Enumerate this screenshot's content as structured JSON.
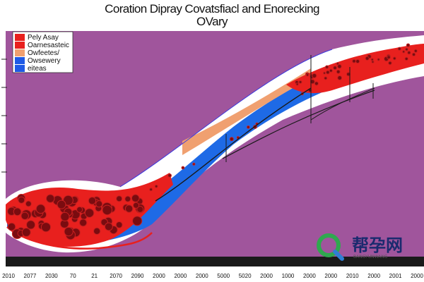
{
  "chart_data": {
    "type": "area",
    "title_line1": "Coration Dipray Covatsfiacl and Enorecking",
    "title_line2": "OVary",
    "x_tick_labels": [
      "2010",
      "2077",
      "2030",
      "70",
      "21",
      "2070",
      "2090",
      "2000",
      "2000",
      "2000",
      "5000",
      "5020",
      "2000",
      "1000",
      "2000",
      "2000",
      "2010",
      "2000",
      "2001",
      "2000"
    ],
    "legend": [
      {
        "label": "Pely Asay",
        "color": "#e8201e"
      },
      {
        "label": "Oarnesasteic",
        "color": "#e8201e"
      },
      {
        "label": "Owfeetes/",
        "color": "#f0a070"
      },
      {
        "label": "Owsewery",
        "color": "#1e5ae6"
      },
      {
        "label": "eiteas",
        "color": "#1e5ae6"
      }
    ],
    "colors": {
      "background": "#a0559c",
      "band_outer": "#ffffff",
      "band_red": "#e8201e",
      "band_blue": "#1e6ae6",
      "band_orange": "#f0a070",
      "dots": "#7a0c10",
      "line": "#1a1a1a"
    },
    "watermark": {
      "text": "帮孕网",
      "sub": "BANGYUNWANG",
      "icon": "magnifier-logo-icon"
    }
  }
}
